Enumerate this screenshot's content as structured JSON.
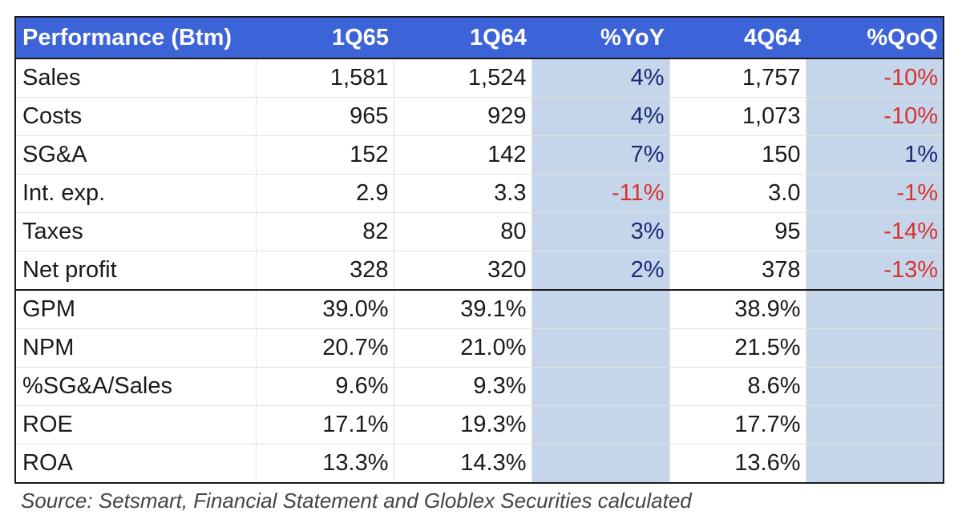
{
  "header": [
    "Performance (Btm)",
    "1Q65",
    "1Q64",
    "%YoY",
    "4Q64",
    "%QoQ"
  ],
  "rows": [
    [
      "Sales",
      "1,581",
      "1,524",
      "4%",
      "1,757",
      "-10%"
    ],
    [
      "Costs",
      "965",
      "929",
      "4%",
      "1,073",
      "-10%"
    ],
    [
      "SG&A",
      "152",
      "142",
      "7%",
      "150",
      "1%"
    ],
    [
      "Int. exp.",
      "2.9",
      "3.3",
      "-11%",
      "3.0",
      "-1%"
    ],
    [
      "Taxes",
      "82",
      "80",
      "3%",
      "95",
      "-14%"
    ],
    [
      "Net profit",
      "328",
      "320",
      "2%",
      "378",
      "-13%"
    ]
  ],
  "ratios": [
    [
      "GPM",
      "39.0%",
      "39.1%",
      "",
      "38.9%",
      ""
    ],
    [
      "NPM",
      "20.7%",
      "21.0%",
      "",
      "21.5%",
      ""
    ],
    [
      "%SG&A/Sales",
      "9.6%",
      "9.3%",
      "",
      "8.6%",
      ""
    ],
    [
      "ROE",
      "17.1%",
      "19.3%",
      "",
      "17.7%",
      ""
    ],
    [
      "ROA",
      "13.3%",
      "14.3%",
      "",
      "13.6%",
      ""
    ]
  ],
  "source": "Source: Setsmart, Financial Statement and Globlex Securities calculated",
  "colors": {
    "header_bg": "#3d63d9",
    "shade_bg": "#c6d6ea",
    "negative": "#d8312f",
    "positive": "#1a2a78"
  }
}
